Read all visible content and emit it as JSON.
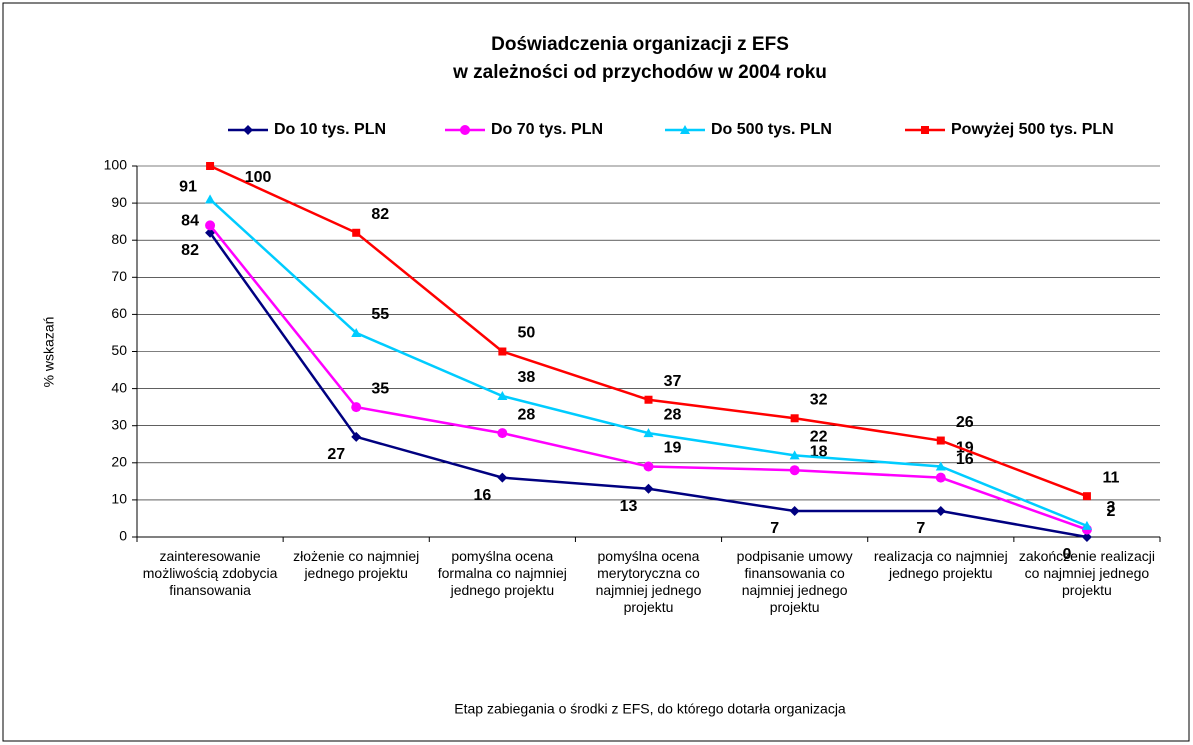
{
  "chart_data": {
    "type": "line",
    "title": "Doświadczenia organizacji z EFS",
    "subtitle": "w zależności od przychodów w 2004 roku",
    "y_label": "% wskazań",
    "x_label": "Etap zabiegania o środki z EFS, do którego dotarła organizacja",
    "categories": [
      "zainteresowanie możliwością zdobycia finansowania",
      "złożenie co najmniej jednego projektu",
      "pomyślna ocena formalna co najmniej jednego projektu",
      "pomyślna ocena merytoryczna co najmniej jednego projektu",
      "podpisanie umowy finansowania co najmniej jednego projektu",
      "realizacja co najmniej jednego projektu",
      "zakończenie realizacji co najmniej jednego projektu"
    ],
    "series": [
      {
        "name": "Do 10 tys. PLN",
        "color": "#000080",
        "marker": "diamond",
        "values": [
          82,
          27,
          16,
          13,
          7,
          7,
          0
        ]
      },
      {
        "name": "Do 70 tys. PLN",
        "color": "#ff00ff",
        "marker": "circle",
        "values": [
          84,
          35,
          28,
          19,
          18,
          16,
          2
        ]
      },
      {
        "name": "Do 500 tys. PLN",
        "color": "#00ccff",
        "marker": "triangle",
        "values": [
          91,
          55,
          38,
          28,
          22,
          19,
          3
        ]
      },
      {
        "name": "Powyżej 500 tys. PLN",
        "color": "#ff0000",
        "marker": "square",
        "values": [
          100,
          82,
          50,
          37,
          32,
          26,
          11
        ]
      }
    ],
    "ylim": [
      0,
      100
    ],
    "yticks": [
      0,
      10,
      20,
      30,
      40,
      50,
      60,
      70,
      80,
      90,
      100
    ],
    "grid": true,
    "legend": "top"
  }
}
